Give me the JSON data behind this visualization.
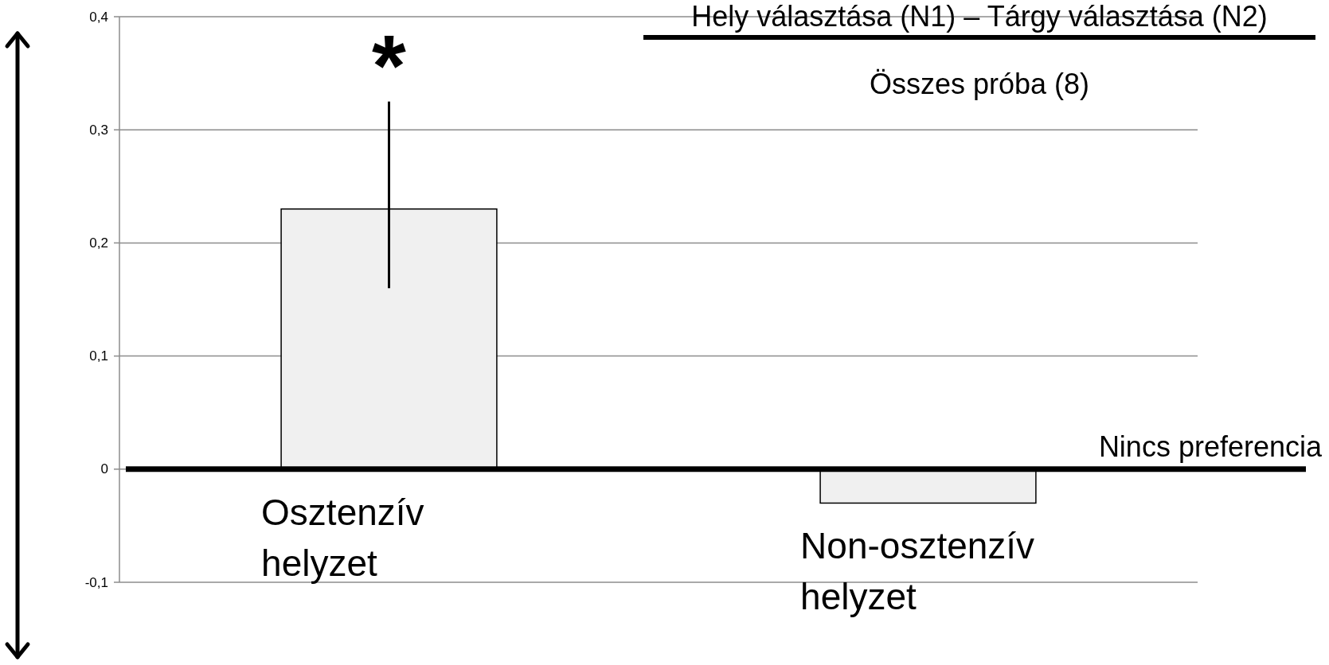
{
  "chart_data": {
    "type": "bar",
    "title": "Hely választása (N1) – Tárgy választása (N2)",
    "subtitle": "Összes próba (8)",
    "categories": [
      "Osztenzív helyzet",
      "Non-osztenzív helyzet"
    ],
    "values": [
      0.23,
      -0.03
    ],
    "color": "#f0f0f0",
    "errors": [
      [
        0.16,
        0.325
      ],
      null
    ],
    "ylim": [
      -0.1,
      0.4
    ],
    "yticks": [
      {
        "value": -0.1,
        "label": "-0,1"
      },
      0,
      {
        "value": 0.1,
        "label": "0,1"
      },
      {
        "value": 0.2,
        "label": "0,2"
      },
      {
        "value": 0.3,
        "label": "0,3"
      },
      {
        "value": 0.4,
        "label": "0,4"
      }
    ],
    "grid": true,
    "ref_lines": [
      {
        "axis": "y",
        "value": 0,
        "label": "Nincs preferencia",
        "color": "#000000"
      }
    ],
    "annotations": [
      "*"
    ]
  }
}
